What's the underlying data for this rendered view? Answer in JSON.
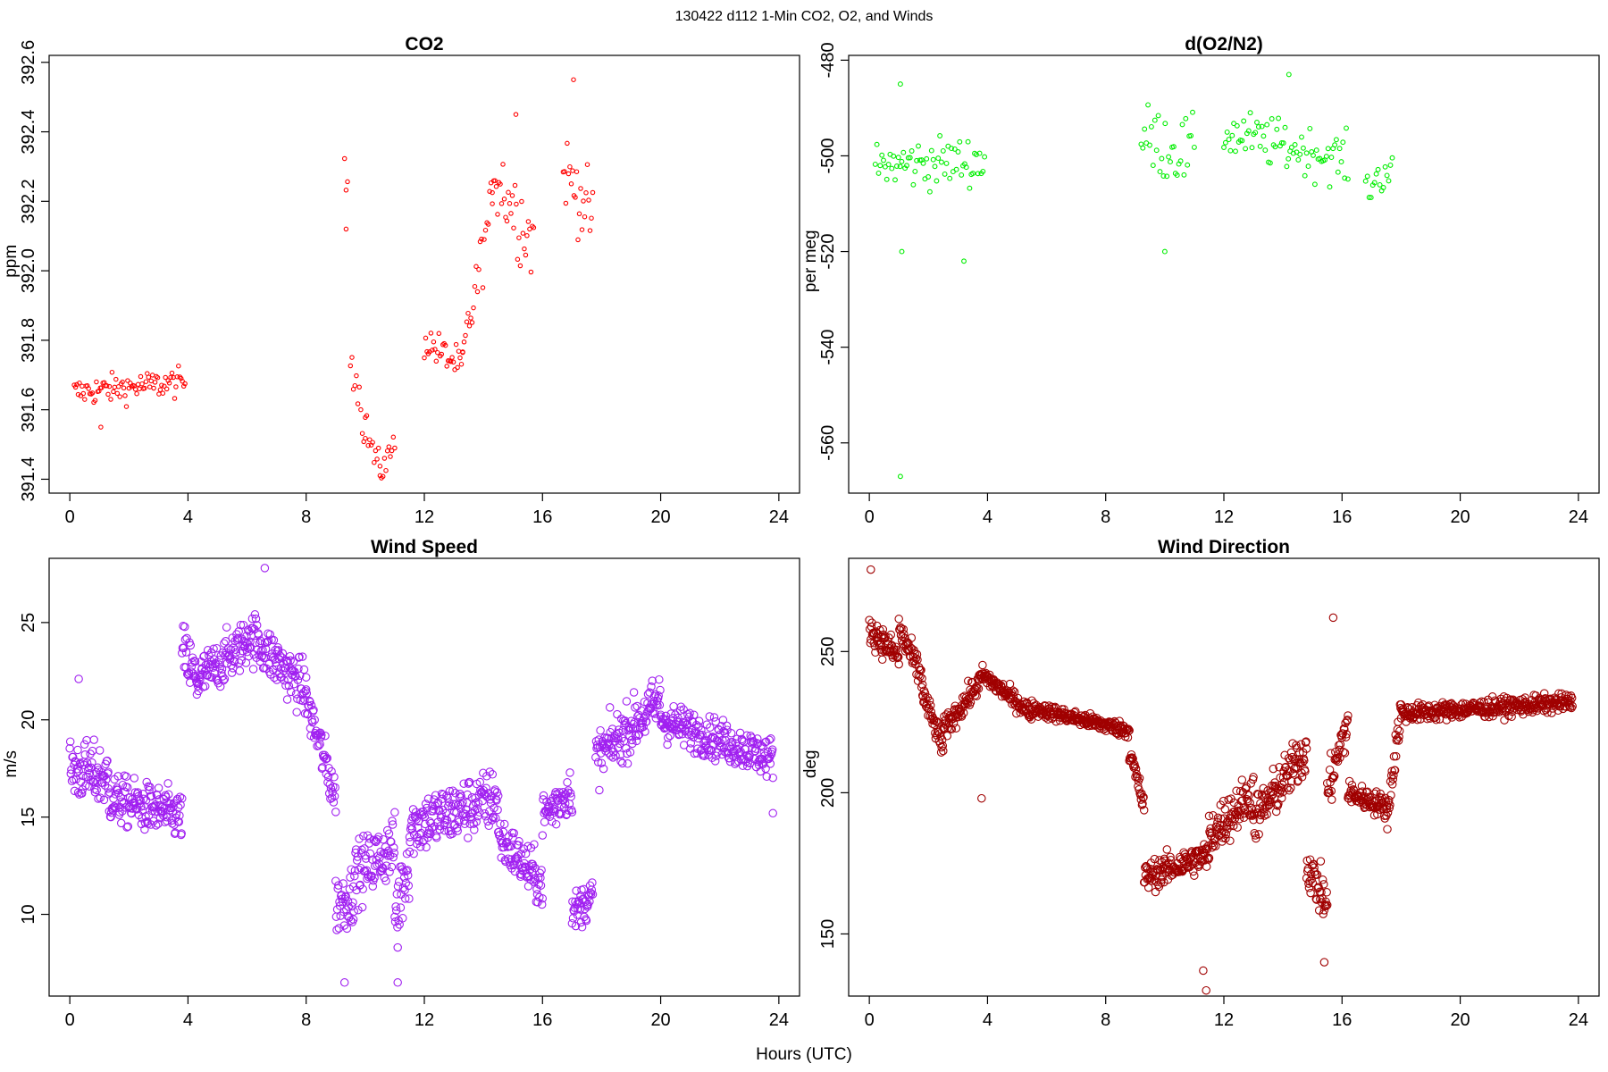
{
  "figure": {
    "title": "130422   d112   1-Min CO2, O2, and Winds",
    "xlabel": "Hours (UTC)"
  },
  "chart_data": [
    {
      "id": "co2",
      "type": "scatter",
      "title": "CO2",
      "ylabel": "ppm",
      "color": "#ff0000",
      "xlim": [
        -0.7,
        24.7
      ],
      "ylim": [
        391.36,
        392.62
      ],
      "xticks": [
        0,
        4,
        8,
        12,
        16,
        20,
        24
      ],
      "yticks": [
        391.4,
        391.6,
        391.8,
        392.0,
        392.2,
        392.4,
        392.6
      ],
      "ytick_labels": [
        "391.4",
        "391.6",
        "391.8",
        "392.0",
        "392.2",
        "392.4",
        "392.6"
      ],
      "segments": [
        {
          "x": [
            0.15,
            3.9
          ],
          "y": [
            391.65,
            391.68
          ],
          "spread": 0.04
        },
        {
          "x": [
            9.3,
            9.4
          ],
          "y": [
            392.27,
            392.25
          ],
          "spread": 0.05
        },
        {
          "x": [
            9.5,
            10.0
          ],
          "y": [
            391.78,
            391.55
          ],
          "spread": 0.07
        },
        {
          "x": [
            10.0,
            10.5
          ],
          "y": [
            391.55,
            391.42
          ],
          "spread": 0.05
        },
        {
          "x": [
            10.5,
            11.0
          ],
          "y": [
            391.42,
            391.5
          ],
          "spread": 0.04
        },
        {
          "x": [
            12.0,
            13.3
          ],
          "y": [
            391.8,
            391.72
          ],
          "spread": 0.05
        },
        {
          "x": [
            13.3,
            14.3
          ],
          "y": [
            391.75,
            392.2
          ],
          "spread": 0.08
        },
        {
          "x": [
            14.3,
            15.7
          ],
          "y": [
            392.3,
            392.08
          ],
          "spread": 0.12
        },
        {
          "x": [
            16.7,
            17.7
          ],
          "y": [
            392.3,
            392.15
          ],
          "spread": 0.1
        }
      ],
      "outliers": [
        {
          "x": 9.35,
          "y": 392.12
        },
        {
          "x": 15.1,
          "y": 392.45
        },
        {
          "x": 17.05,
          "y": 392.55
        },
        {
          "x": 1.05,
          "y": 391.55
        }
      ]
    },
    {
      "id": "o2",
      "type": "scatter",
      "title": "d(O2/N2)",
      "ylabel": "per meg",
      "color": "#00ee00",
      "xlim": [
        -0.7,
        24.7
      ],
      "ylim": [
        -570.5,
        -479
      ],
      "xticks": [
        0,
        4,
        8,
        12,
        16,
        20,
        24
      ],
      "yticks": [
        -480,
        -500,
        -520,
        -540,
        -560
      ],
      "ytick_labels": [
        "-480",
        "-500",
        "-520",
        "-540",
        "-560"
      ],
      "segments": [
        {
          "x": [
            0.2,
            3.9
          ],
          "y": [
            -502,
            -501
          ],
          "spread": 5
        },
        {
          "x": [
            9.2,
            11.0
          ],
          "y": [
            -496,
            -500
          ],
          "spread": 7
        },
        {
          "x": [
            12.0,
            16.2
          ],
          "y": [
            -495,
            -501
          ],
          "spread": 5
        },
        {
          "x": [
            16.8,
            17.7
          ],
          "y": [
            -507,
            -502
          ],
          "spread": 4
        }
      ],
      "outliers": [
        {
          "x": 1.05,
          "y": -567
        },
        {
          "x": 1.05,
          "y": -485
        },
        {
          "x": 3.2,
          "y": -522
        },
        {
          "x": 1.1,
          "y": -520
        },
        {
          "x": 14.2,
          "y": -483
        },
        {
          "x": 10.0,
          "y": -520
        }
      ]
    },
    {
      "id": "wind_speed",
      "type": "scatter",
      "title": "Wind Speed",
      "ylabel": "m/s",
      "color": "#a020f0",
      "xlim": [
        -0.7,
        24.7
      ],
      "ylim": [
        5.8,
        28.3
      ],
      "xticks": [
        0,
        4,
        8,
        12,
        16,
        20,
        24
      ],
      "yticks": [
        10,
        15,
        20,
        25
      ],
      "ytick_labels": [
        "10",
        "15",
        "20",
        "25"
      ],
      "segments": [
        {
          "x": [
            0,
            1.3
          ],
          "y": [
            17.5,
            17.0
          ],
          "spread": 1.5
        },
        {
          "x": [
            1.3,
            3.8
          ],
          "y": [
            16.0,
            15.0
          ],
          "spread": 1.2
        },
        {
          "x": [
            3.8,
            4.3
          ],
          "y": [
            23.5,
            22.0
          ],
          "spread": 1.5
        },
        {
          "x": [
            4.3,
            6.0
          ],
          "y": [
            22.0,
            24.0
          ],
          "spread": 1.2
        },
        {
          "x": [
            6.0,
            8.0
          ],
          "y": [
            24.5,
            21.5
          ],
          "spread": 1.3
        },
        {
          "x": [
            8.0,
            9.0
          ],
          "y": [
            21.0,
            16.0
          ],
          "spread": 1.2
        },
        {
          "x": [
            9.0,
            9.6
          ],
          "y": [
            10.5,
            11.0
          ],
          "spread": 1.5
        },
        {
          "x": [
            9.6,
            11.0
          ],
          "y": [
            12.0,
            13.5
          ],
          "spread": 1.5
        },
        {
          "x": [
            11.0,
            11.5
          ],
          "y": [
            10.0,
            13.0
          ],
          "spread": 2.0
        },
        {
          "x": [
            11.5,
            14.5
          ],
          "y": [
            14.5,
            16.0
          ],
          "spread": 1.5
        },
        {
          "x": [
            14.5,
            16.0
          ],
          "y": [
            14.0,
            11.5
          ],
          "spread": 1.2
        },
        {
          "x": [
            16.0,
            17.0
          ],
          "y": [
            15.0,
            16.5
          ],
          "spread": 1.2
        },
        {
          "x": [
            17.0,
            17.7
          ],
          "y": [
            10.0,
            11.0
          ],
          "spread": 1.0
        },
        {
          "x": [
            17.8,
            20.0
          ],
          "y": [
            18.0,
            21.0
          ],
          "spread": 1.3
        },
        {
          "x": [
            20.0,
            23.8
          ],
          "y": [
            20.0,
            18.0
          ],
          "spread": 1.0
        }
      ],
      "outliers": [
        {
          "x": 0.3,
          "y": 22.1
        },
        {
          "x": 6.6,
          "y": 27.8
        },
        {
          "x": 9.3,
          "y": 6.5
        },
        {
          "x": 11.1,
          "y": 6.5
        },
        {
          "x": 23.8,
          "y": 15.2
        },
        {
          "x": 11.1,
          "y": 8.3
        }
      ]
    },
    {
      "id": "wind_direction",
      "type": "scatter",
      "title": "Wind Direction",
      "ylabel": "deg",
      "color": "#a00000",
      "xlim": [
        -0.7,
        24.7
      ],
      "ylim": [
        128,
        283
      ],
      "xticks": [
        0,
        4,
        8,
        12,
        16,
        20,
        24
      ],
      "yticks": [
        150,
        200,
        250
      ],
      "ytick_labels": [
        "150",
        "200",
        "250"
      ],
      "segments": [
        {
          "x": [
            0,
            1.0
          ],
          "y": [
            258,
            248
          ],
          "spread": 5
        },
        {
          "x": [
            1.0,
            1.8
          ],
          "y": [
            258,
            240
          ],
          "spread": 5
        },
        {
          "x": [
            1.8,
            2.5
          ],
          "y": [
            235,
            216
          ],
          "spread": 4
        },
        {
          "x": [
            2.5,
            3.8
          ],
          "y": [
            222,
            240
          ],
          "spread": 4
        },
        {
          "x": [
            3.8,
            5.5
          ],
          "y": [
            242,
            228
          ],
          "spread": 3
        },
        {
          "x": [
            5.5,
            8.8
          ],
          "y": [
            230,
            222
          ],
          "spread": 2.5
        },
        {
          "x": [
            8.8,
            9.3
          ],
          "y": [
            215,
            195
          ],
          "spread": 4
        },
        {
          "x": [
            9.3,
            11.5
          ],
          "y": [
            170,
            178
          ],
          "spread": 5
        },
        {
          "x": [
            11.5,
            13.0
          ],
          "y": [
            185,
            200
          ],
          "spread": 8
        },
        {
          "x": [
            13.0,
            14.8
          ],
          "y": [
            190,
            215
          ],
          "spread": 8
        },
        {
          "x": [
            14.8,
            15.5
          ],
          "y": [
            175,
            160
          ],
          "spread": 8
        },
        {
          "x": [
            15.5,
            16.2
          ],
          "y": [
            200,
            225
          ],
          "spread": 8
        },
        {
          "x": [
            16.2,
            17.5
          ],
          "y": [
            200,
            195
          ],
          "spread": 4
        },
        {
          "x": [
            17.5,
            18.0
          ],
          "y": [
            190,
            230
          ],
          "spread": 6
        },
        {
          "x": [
            18.0,
            23.8
          ],
          "y": [
            228,
            232
          ],
          "spread": 3
        }
      ],
      "outliers": [
        {
          "x": 0.05,
          "y": 279
        },
        {
          "x": 3.8,
          "y": 198
        },
        {
          "x": 11.4,
          "y": 130
        },
        {
          "x": 15.7,
          "y": 262
        },
        {
          "x": 15.4,
          "y": 140
        },
        {
          "x": 11.3,
          "y": 137
        }
      ]
    }
  ]
}
